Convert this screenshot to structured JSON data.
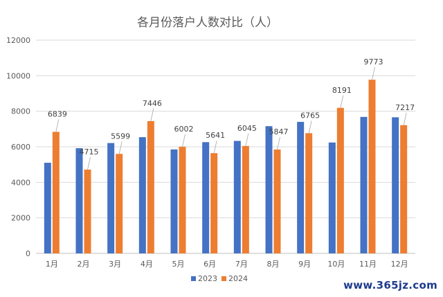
{
  "chart_data": {
    "type": "bar",
    "title": "各月份落户人数对比（人）",
    "categories": [
      "1月",
      "2月",
      "3月",
      "4月",
      "5月",
      "6月",
      "7月",
      "8月",
      "9月",
      "10月",
      "11月",
      "12月"
    ],
    "series": [
      {
        "name": "2023",
        "color": "#4472c4",
        "values": [
          5100,
          5920,
          6210,
          6540,
          5850,
          6260,
          6330,
          7160,
          7400,
          6240,
          7680,
          7660
        ]
      },
      {
        "name": "2024",
        "color": "#ed7d31",
        "values": [
          6839,
          4715,
          5599,
          7446,
          6002,
          5641,
          6045,
          5847,
          6765,
          8191,
          9773,
          7217
        ],
        "data_labels": [
          "6839",
          "4715",
          "5599",
          "7446",
          "6002",
          "5641",
          "6045",
          "5847",
          "6765",
          "8191",
          "9773",
          "7217"
        ]
      }
    ],
    "yticks": [
      0,
      2000,
      4000,
      6000,
      8000,
      10000,
      12000
    ],
    "ylim": [
      0,
      12000
    ],
    "xlabel": "",
    "ylabel": "",
    "grid": true,
    "legend_position": "bottom"
  },
  "watermark": "www.365jz.com"
}
